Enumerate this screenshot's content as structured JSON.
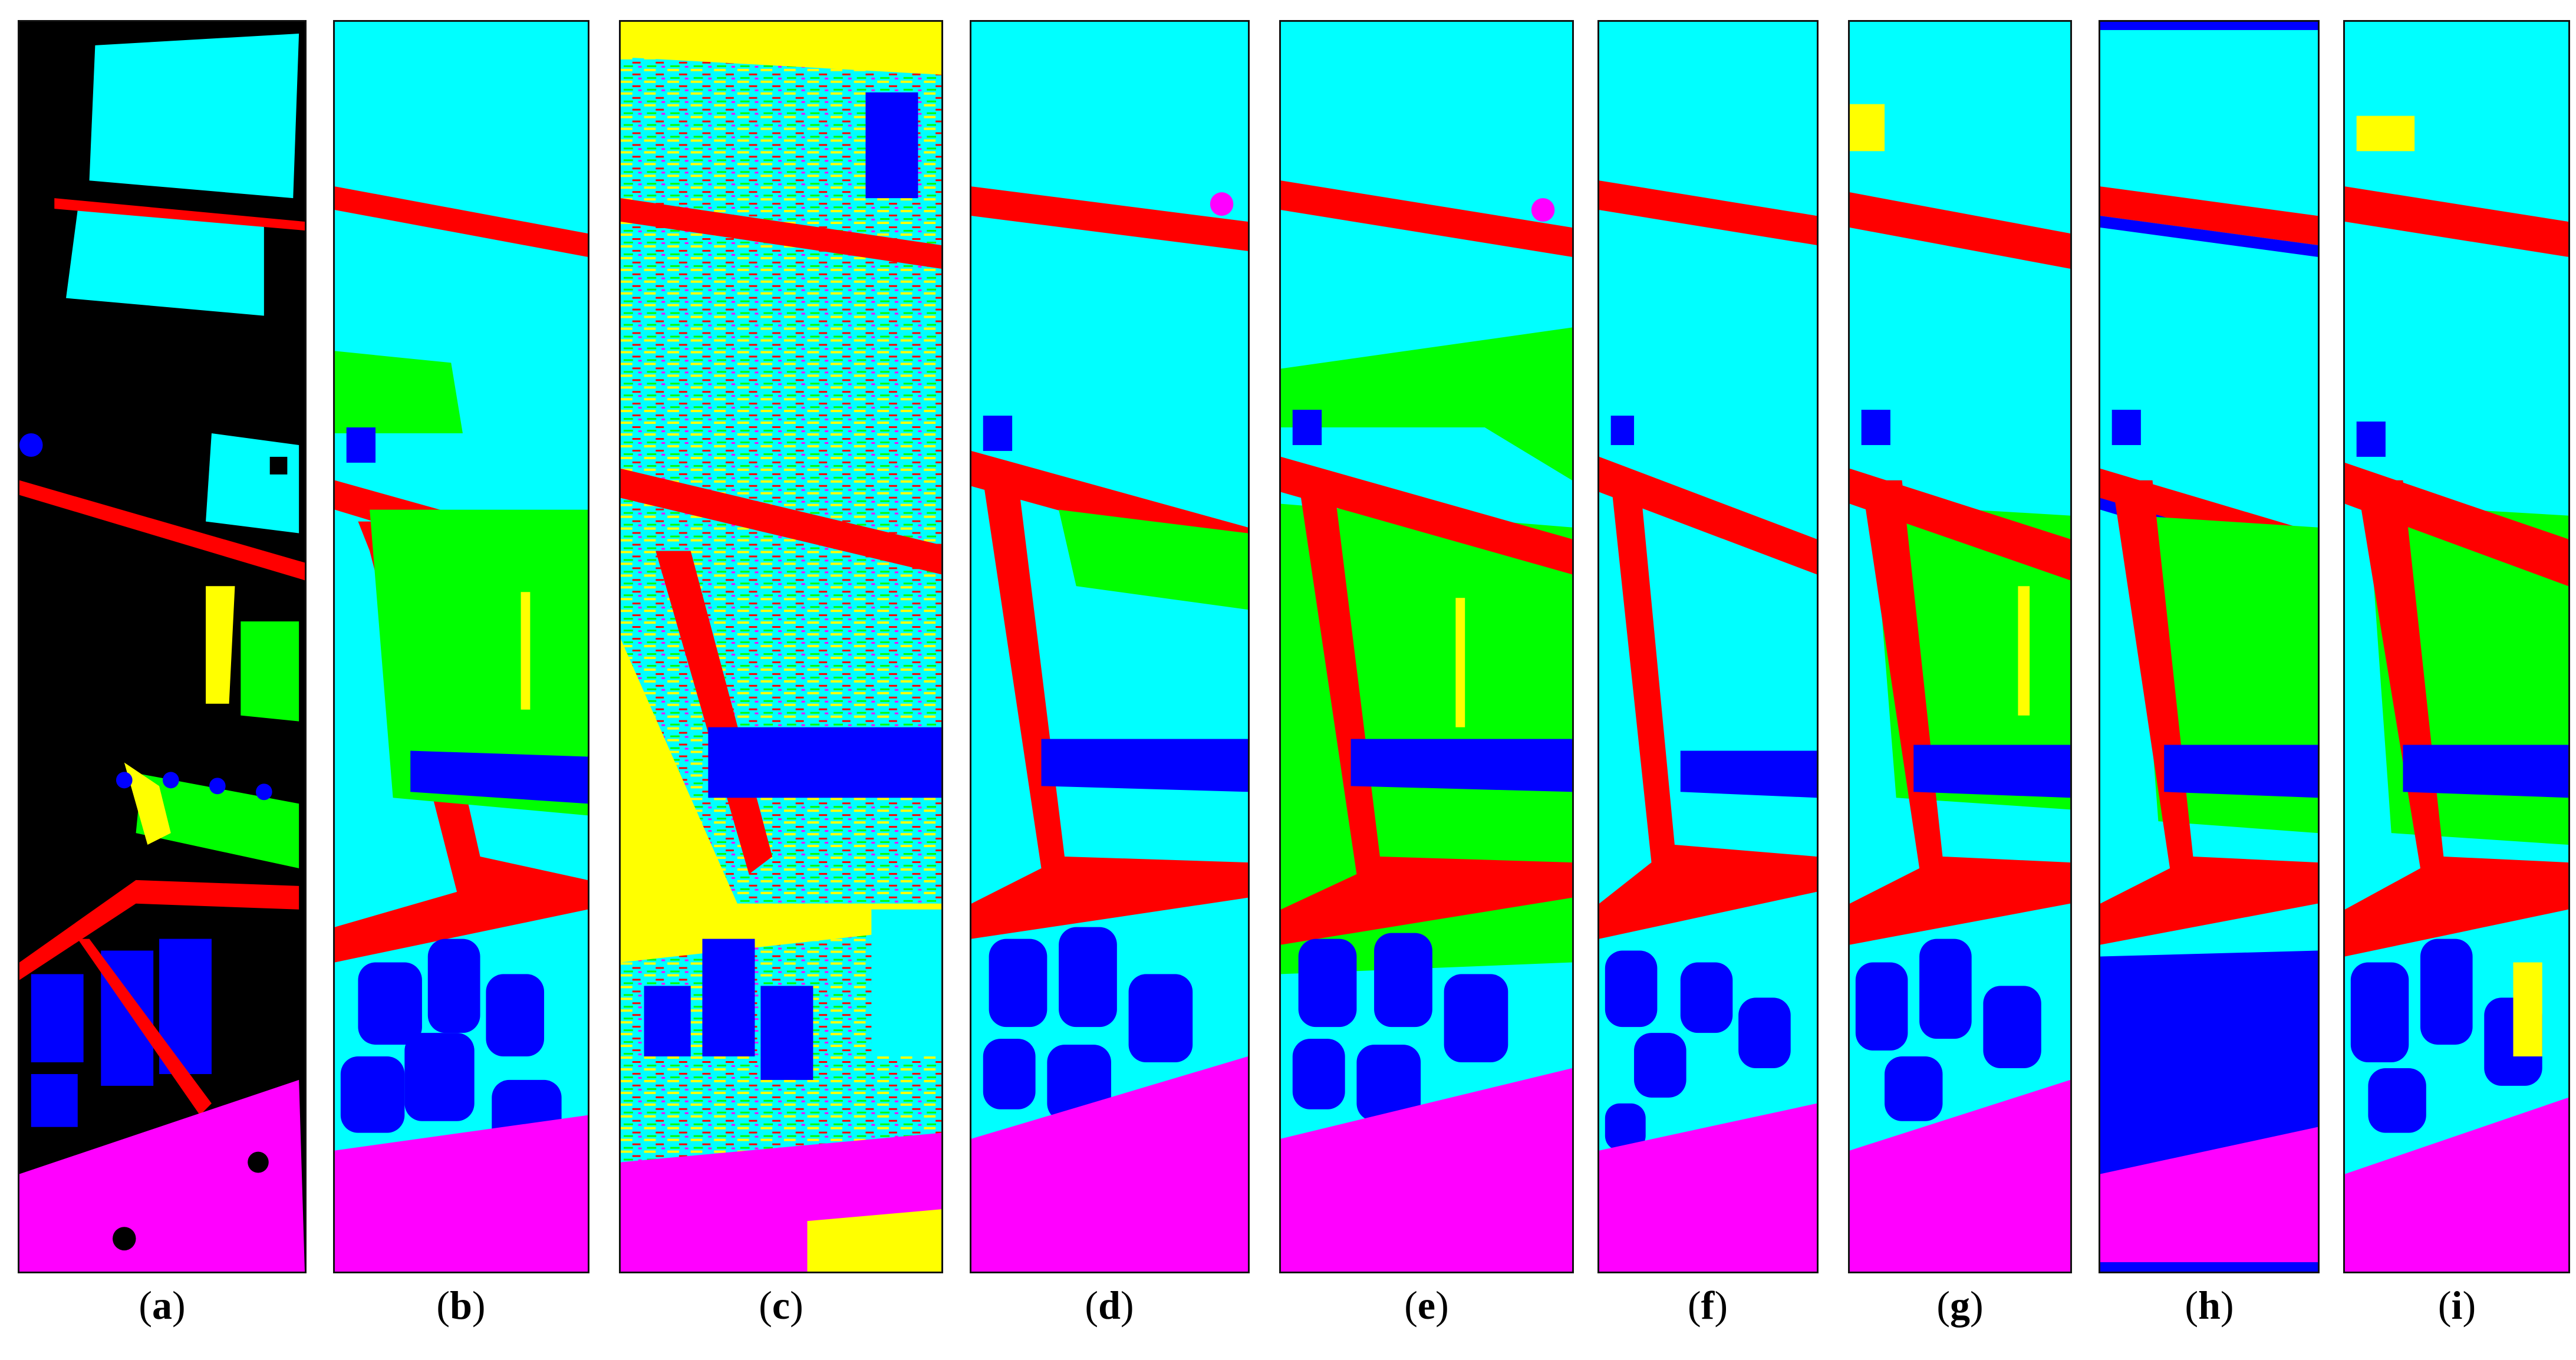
{
  "figure": {
    "panels": [
      {
        "id": "a",
        "label": "(a)",
        "letter": "a",
        "background": "#000000"
      },
      {
        "id": "b",
        "label": "(b)",
        "letter": "b",
        "background": "#00ffff"
      },
      {
        "id": "c",
        "label": "(c)",
        "letter": "c",
        "background": "#00ffff"
      },
      {
        "id": "d",
        "label": "(d)",
        "letter": "d",
        "background": "#00ffff"
      },
      {
        "id": "e",
        "label": "(e)",
        "letter": "e",
        "background": "#00ffff"
      },
      {
        "id": "f",
        "label": "(f)",
        "letter": "f",
        "background": "#00ffff"
      },
      {
        "id": "g",
        "label": "(g)",
        "letter": "g",
        "background": "#00ffff"
      },
      {
        "id": "h",
        "label": "(h)",
        "letter": "h",
        "background": "#00ffff"
      },
      {
        "id": "i",
        "label": "(i)",
        "letter": "i",
        "background": "#00ffff"
      }
    ],
    "class_colors": {
      "road": "#ff0000",
      "vegetation": "#00ff00",
      "building": "#0000ff",
      "water": "#ff00ff",
      "soil": "#ffff00",
      "meadow": "#00ffff",
      "unlabeled": "#000000"
    }
  }
}
